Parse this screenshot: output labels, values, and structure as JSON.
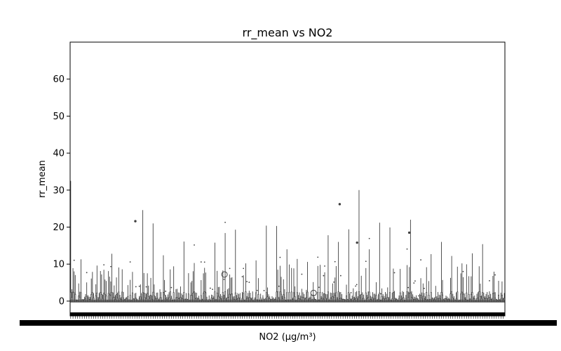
{
  "chart_data": {
    "type": "box",
    "title": "rr_mean vs NO2",
    "xlabel": "NO2 (µg/m³)",
    "ylabel": "rr_mean",
    "ylim": [
      -4,
      70
    ],
    "yticks": [
      0,
      10,
      20,
      30,
      40,
      50,
      60
    ],
    "x_category_count": 380,
    "x_tick_labels_note": "x tick labels overlap into an illegible band",
    "whisker_max": [
      32.5,
      11.3,
      6.1,
      7.2,
      12.8,
      8.6,
      7.9,
      24.6,
      21.0,
      12.4,
      9.4,
      16.1,
      10.3,
      9.0,
      15.8,
      18.4,
      19.3,
      10.2,
      11.0,
      20.4,
      20.3,
      14.0,
      11.4,
      10.6,
      9.5,
      17.8,
      16.0,
      19.4,
      30.0,
      14.0,
      21.2,
      19.9,
      8.7,
      22.0,
      6.2,
      12.7,
      16.0,
      12.2,
      10.2,
      12.9,
      15.4,
      6.8
    ],
    "whisker_max_note": "approximate upper whisker heights of the tallest boxes, left to right",
    "outliers": [
      {
        "x_fraction": 0.355,
        "y": 7.2
      },
      {
        "x_fraction": 0.56,
        "y": 2.2
      },
      {
        "x_fraction": 0.62,
        "y": 26.2
      },
      {
        "x_fraction": 0.78,
        "y": 18.5
      },
      {
        "x_fraction": 0.15,
        "y": 21.6
      },
      {
        "x_fraction": 0.66,
        "y": 15.8
      }
    ],
    "outliers_note": "approximate; x_fraction is position along the category axis",
    "grid": false,
    "legend": "none"
  },
  "colors": {
    "box_edge": "#3f3f3f",
    "background": "#ffffff",
    "axes": "#000000"
  }
}
